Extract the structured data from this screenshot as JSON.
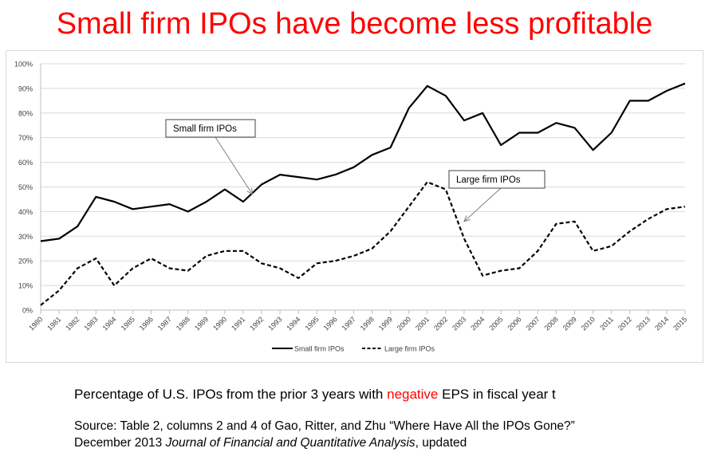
{
  "slide": {
    "title": "Small firm IPOs have become less profitable",
    "caption_pre": "Percentage of U.S. IPOs from the prior 3 years with ",
    "caption_highlight": "negative",
    "caption_post": " EPS in fiscal year t",
    "source_line1": "Source: Table 2, columns 2 and 4 of Gao, Ritter, and Zhu “Where Have All the IPOs Gone?”",
    "source_line2_pre": "December 2013 ",
    "source_line2_italic": "Journal of Financial and Quantitative Analysis",
    "source_line2_post": ", updated",
    "colors": {
      "title": "#ff0000",
      "highlight": "#ff0000"
    }
  },
  "chart_data": {
    "type": "line",
    "title": "",
    "xlabel": "",
    "ylabel": "",
    "ylim": [
      0,
      100
    ],
    "y_ticks": [
      "0%",
      "10%",
      "20%",
      "30%",
      "40%",
      "50%",
      "60%",
      "70%",
      "80%",
      "90%",
      "100%"
    ],
    "grid": true,
    "legend_position": "bottom",
    "categories": [
      "1980",
      "1981",
      "1982",
      "1983",
      "1984",
      "1985",
      "1986",
      "1987",
      "1988",
      "1989",
      "1990",
      "1991",
      "1992",
      "1993",
      "1994",
      "1995",
      "1996",
      "1997",
      "1998",
      "1999",
      "2000",
      "2001",
      "2002",
      "2003",
      "2004",
      "2005",
      "2006",
      "2007",
      "2008",
      "2009",
      "2010",
      "2011",
      "2012",
      "2013",
      "2014",
      "2015"
    ],
    "series": [
      {
        "name": "Small firm IPOs",
        "style": "solid",
        "color": "#000000",
        "values": [
          28,
          29,
          34,
          46,
          44,
          41,
          42,
          43,
          40,
          44,
          49,
          44,
          51,
          55,
          54,
          53,
          55,
          58,
          63,
          66,
          82,
          91,
          87,
          77,
          80,
          67,
          72,
          72,
          76,
          74,
          65,
          72,
          85,
          85,
          89,
          92
        ]
      },
      {
        "name": "Large firm IPOs",
        "style": "dashed",
        "color": "#000000",
        "values": [
          2,
          8,
          17,
          21,
          10,
          17,
          21,
          17,
          16,
          22,
          24,
          24,
          19,
          17,
          13,
          19,
          20,
          22,
          25,
          32,
          42,
          52,
          49,
          29,
          14,
          16,
          17,
          24,
          35,
          36,
          24,
          26,
          32,
          37,
          41,
          42
        ]
      }
    ],
    "annotations": [
      {
        "text": "Small firm IPOs",
        "points_to": {
          "x": "1991.5",
          "y": 47
        }
      },
      {
        "text": "Large firm IPOs",
        "points_to": {
          "x": "2003",
          "y": 36
        }
      }
    ]
  }
}
